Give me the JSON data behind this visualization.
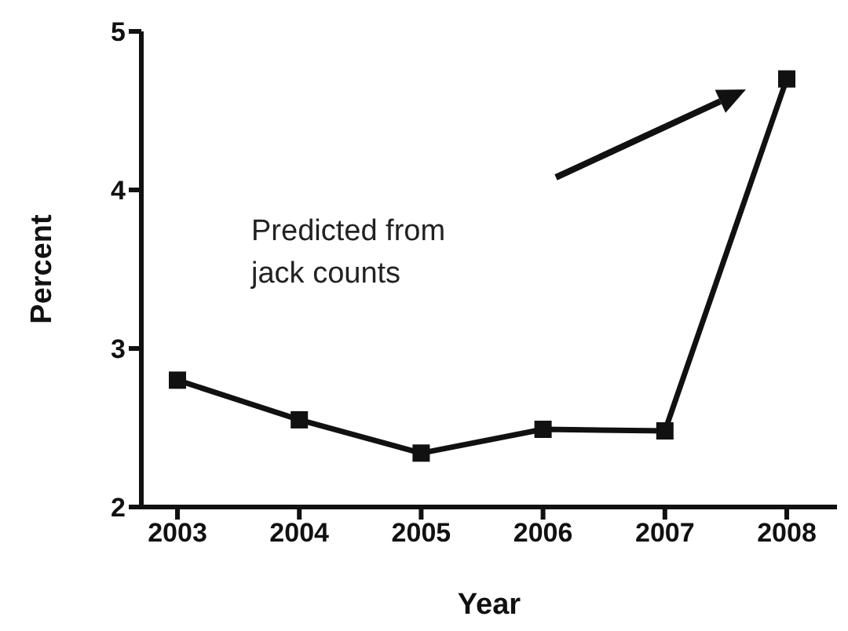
{
  "chart_data": {
    "type": "line",
    "xlabel": "Year",
    "ylabel": "Percent",
    "categories": [
      "2003",
      "2004",
      "2005",
      "2006",
      "2007",
      "2008"
    ],
    "series": [
      {
        "color": "#111111",
        "values": [
          2.8,
          2.55,
          2.34,
          2.49,
          2.48,
          4.7
        ]
      }
    ],
    "ylim": [
      2,
      5
    ],
    "yticks": [
      2,
      3,
      4,
      5
    ],
    "grid": false,
    "legend": false,
    "marker": "square",
    "line_style": "solid",
    "annotations": [
      "Predicted from jack counts"
    ]
  }
}
